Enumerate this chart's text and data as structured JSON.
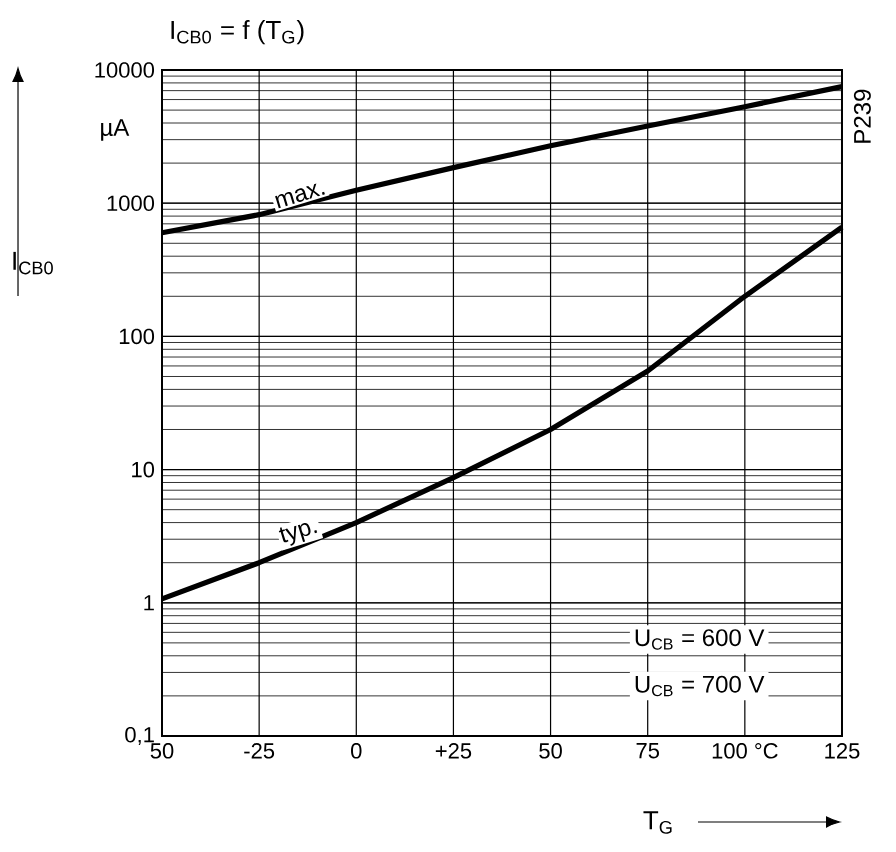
{
  "chart_data": {
    "type": "line",
    "title": "I$_{CB0}$ = f (T$_{G}$)",
    "xlabel": "T$_{G}$",
    "ylabel": "I$_{CB0}$",
    "annotations": [
      "µA",
      "P239",
      "U$_{CB}$ = 600 V",
      "U$_{CB}$ = 700 V"
    ],
    "x": [
      -50,
      -25,
      0,
      25,
      50,
      75,
      100,
      125
    ],
    "series": [
      {
        "name": "max.",
        "color": "#000000",
        "values": [
          600,
          820,
          1250,
          1850,
          2700,
          3800,
          5300,
          7500
        ]
      },
      {
        "name": "typ.",
        "color": "#000000",
        "values": [
          1.07,
          2,
          4,
          8.7,
          20,
          55,
          200,
          660
        ]
      }
    ],
    "log": "y",
    "grid": true,
    "marker": "none",
    "line_style": "solid",
    "xlim": [
      -50,
      125
    ],
    "ylim": [
      0.1,
      10000
    ],
    "xticks": [
      {
        "value": -50,
        "label": "50"
      },
      {
        "value": -25,
        "label": "-25"
      },
      {
        "value": 0,
        "label": "0"
      },
      {
        "value": 25,
        "label": "+25"
      },
      {
        "value": 50,
        "label": "50"
      },
      {
        "value": 75,
        "label": "75"
      },
      {
        "value": 100,
        "label": "100 °C"
      },
      {
        "value": 125,
        "label": "125"
      }
    ],
    "yticks": [
      {
        "value": 0.1,
        "label": "0,1"
      },
      1,
      10,
      100,
      1000,
      10000
    ]
  }
}
